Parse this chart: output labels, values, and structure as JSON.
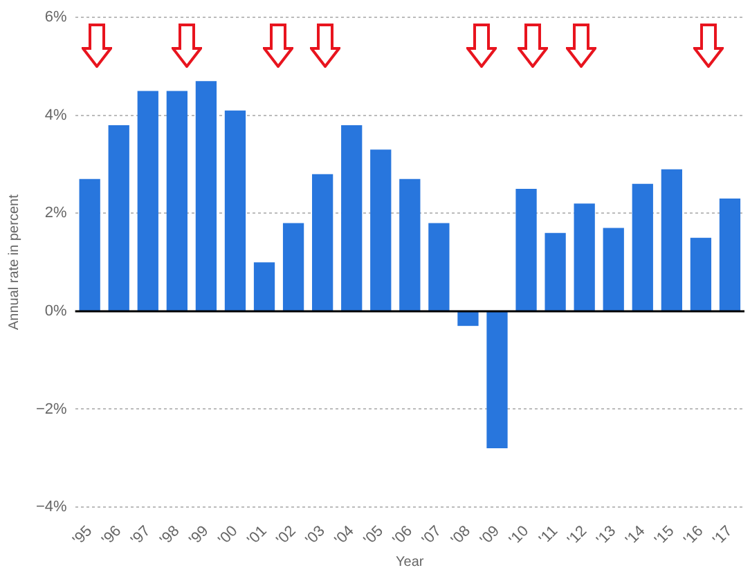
{
  "chart_data": {
    "type": "bar",
    "xlabel": "Year",
    "ylabel": "Annual rate in percent",
    "categories": [
      "'95",
      "'96",
      "'97",
      "'98",
      "'99",
      "'00",
      "'01",
      "'02",
      "'03",
      "'04",
      "'05",
      "'06",
      "'07",
      "'08",
      "'09",
      "'10",
      "'11",
      "'12",
      "'13",
      "'14",
      "'15",
      "'16",
      "'17"
    ],
    "values": [
      2.7,
      3.8,
      4.5,
      4.5,
      4.7,
      4.1,
      1.0,
      1.8,
      2.8,
      3.8,
      3.3,
      2.7,
      1.8,
      -0.3,
      -2.8,
      2.5,
      1.6,
      2.2,
      1.7,
      2.6,
      2.9,
      1.5,
      2.3
    ],
    "color": "#2876dd",
    "ylim": [
      -4,
      6
    ],
    "yticks": [
      {
        "value": -4,
        "label": "−4%"
      },
      {
        "value": -2,
        "label": "−2%"
      },
      {
        "value": 0,
        "label": "0%"
      },
      {
        "value": 2,
        "label": "2%"
      },
      {
        "value": 4,
        "label": "4%"
      },
      {
        "value": 6,
        "label": "6%"
      }
    ],
    "grid": "y",
    "legend": false
  }
}
